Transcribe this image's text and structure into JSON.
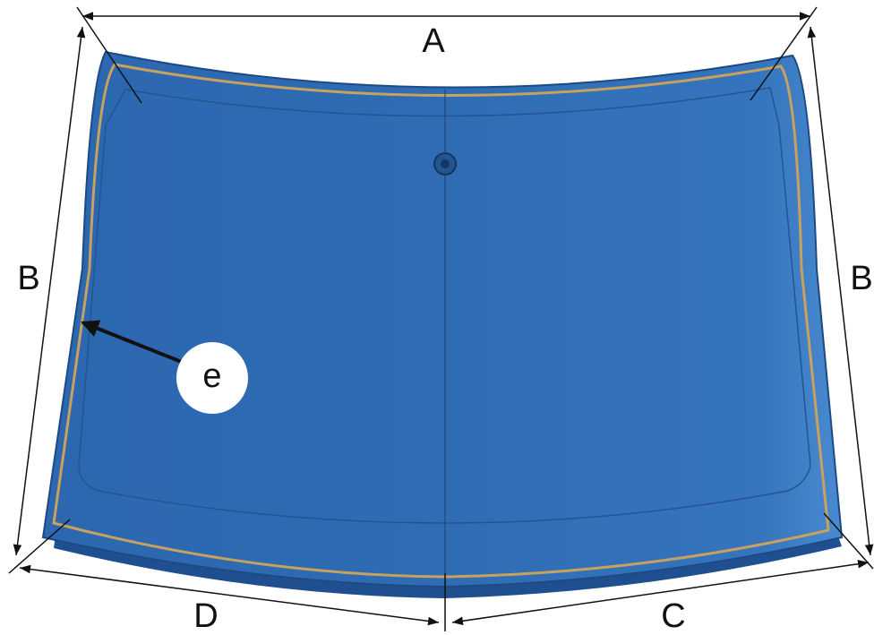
{
  "labels": {
    "top": "A",
    "left": "B",
    "right": "B",
    "bottom_right": "C",
    "bottom_left": "D",
    "callout": "e"
  }
}
